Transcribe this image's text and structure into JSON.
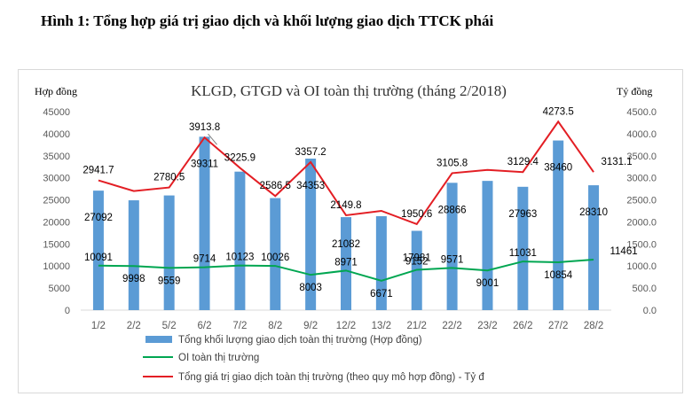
{
  "figure": {
    "caption": "Hình 1:  Tổng hợp giá trị giao dịch và khối lượng giao dịch TTCK phái"
  },
  "chart_data": {
    "type": "bar",
    "title": "KLGD, GTGD và OI toàn thị trường (tháng 2/2018)",
    "ylabel_left": "Hợp đồng",
    "ylabel_right": "Tỷ đồng",
    "categories": [
      "1/2",
      "2/2",
      "5/2",
      "6/2",
      "7/2",
      "8/2",
      "9/2",
      "12/2",
      "13/2",
      "21/2",
      "22/2",
      "23/2",
      "26/2",
      "27/2",
      "28/2"
    ],
    "y_left": {
      "min": 0,
      "max": 45000,
      "ticks": [
        "0",
        "5000",
        "10000",
        "15000",
        "20000",
        "25000",
        "30000",
        "35000",
        "40000",
        "45000"
      ]
    },
    "y_right": {
      "min": 0,
      "max": 4500,
      "ticks": [
        "0.0",
        "500.0",
        "1000.0",
        "1500.0",
        "2000.0",
        "2500.0",
        "3000.0",
        "3500.0",
        "4000.0",
        "4500.0"
      ]
    },
    "series": [
      {
        "name": "Tổng khối lượng giao dịch toàn thị trường (Hợp đồng)",
        "type": "bar",
        "axis": "left",
        "color": "#5b9bd5",
        "values": [
          27092,
          24900,
          26000,
          39311,
          31400,
          25400,
          34353,
          21082,
          21300,
          17981,
          28866,
          29300,
          27963,
          38460,
          28310
        ],
        "labels": [
          "27092",
          "",
          "",
          "39311",
          "",
          "",
          "34353",
          "21082",
          "",
          "17981",
          "28866",
          "",
          "27963",
          "38460",
          "28310"
        ]
      },
      {
        "name": "OI toàn thị trường",
        "type": "line",
        "axis": "left",
        "color": "#00a651",
        "values": [
          10091,
          9998,
          9559,
          9714,
          10123,
          10026,
          8003,
          8971,
          6671,
          9152,
          9571,
          9001,
          11031,
          10854,
          11461
        ],
        "labels": [
          "10091",
          "9998",
          "9559",
          "9714",
          "10123",
          "10026",
          "8003",
          "8971",
          "6671",
          "9152",
          "9571",
          "9001",
          "11031",
          "10854",
          "11461"
        ]
      },
      {
        "name": "Tổng giá trị giao dịch toàn thị trường (theo quy mô hợp đồng) - Tỷ đ",
        "type": "line",
        "axis": "right",
        "color": "#e31e24",
        "values": [
          2941.7,
          2700,
          2780.5,
          3913.8,
          3225.9,
          2586.5,
          3357.2,
          2149.8,
          2250,
          1950.6,
          3105.8,
          3180,
          3129.4,
          4273.5,
          3131.1
        ],
        "labels": [
          "2941.7",
          "",
          "2780.5",
          "3913.8",
          "3225.9",
          "2586.5",
          "3357.2",
          "2149.8",
          "",
          "1950.6",
          "3105.8",
          "",
          "3129.4",
          "4273.5",
          "3131.1"
        ]
      }
    ],
    "grid": false,
    "legend_position": "bottom"
  }
}
